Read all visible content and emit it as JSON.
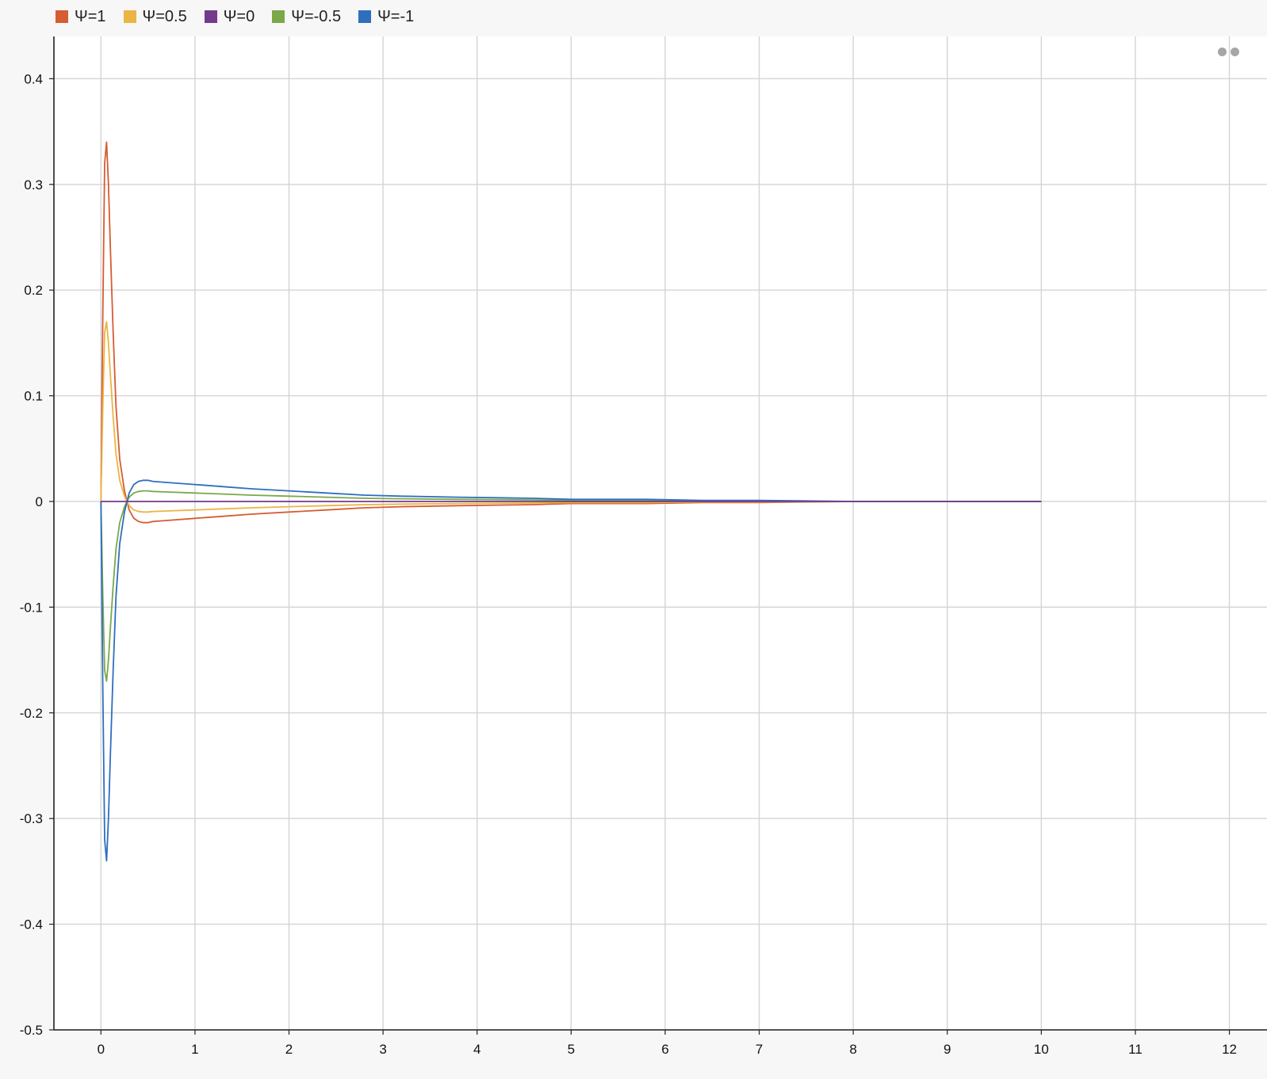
{
  "chart_data": {
    "type": "line",
    "title": "",
    "xlabel": "",
    "ylabel": "",
    "xlim": [
      -0.5,
      12.4
    ],
    "ylim": [
      -0.5,
      0.44
    ],
    "x_ticks": [
      0,
      1,
      2,
      3,
      4,
      5,
      6,
      7,
      8,
      9,
      10,
      11,
      12
    ],
    "y_ticks": [
      0.4,
      0.3,
      0.2,
      0.1,
      0,
      -0.1,
      -0.2,
      -0.3,
      -0.4,
      -0.5
    ],
    "x_tick_labels": [
      "0",
      "1",
      "2",
      "3",
      "4",
      "5",
      "6",
      "7",
      "8",
      "9",
      "10",
      "11",
      "12"
    ],
    "y_tick_labels": [
      "0.4",
      "0.3",
      "0.2",
      "0.1",
      "0",
      "-0.1",
      "-0.2",
      "-0.3",
      "-0.4",
      "-0.5"
    ],
    "grid": true,
    "legend_position": "top-left",
    "x": [
      0,
      0.02,
      0.04,
      0.06,
      0.08,
      0.1,
      0.13,
      0.16,
      0.2,
      0.25,
      0.3,
      0.35,
      0.4,
      0.45,
      0.5,
      0.55,
      0.7,
      1.0,
      1.3,
      1.6,
      2.0,
      2.4,
      2.8,
      3.2,
      3.8,
      4.6,
      5.0,
      5.8,
      6.4,
      7.0,
      8.0,
      9.0,
      10.0
    ],
    "series": [
      {
        "name": "Ψ=1",
        "color": "#d45d33",
        "values": [
          0,
          0.18,
          0.32,
          0.34,
          0.3,
          0.24,
          0.16,
          0.09,
          0.04,
          0.01,
          -0.008,
          -0.016,
          -0.019,
          -0.02,
          -0.02,
          -0.019,
          -0.018,
          -0.016,
          -0.014,
          -0.012,
          -0.01,
          -0.008,
          -0.006,
          -0.005,
          -0.004,
          -0.003,
          -0.002,
          -0.002,
          -0.001,
          -0.001,
          0,
          0,
          0
        ]
      },
      {
        "name": "Ψ=0.5",
        "color": "#ecb445",
        "values": [
          0,
          0.09,
          0.16,
          0.17,
          0.15,
          0.12,
          0.08,
          0.045,
          0.02,
          0.005,
          -0.004,
          -0.008,
          -0.0095,
          -0.01,
          -0.01,
          -0.0095,
          -0.009,
          -0.008,
          -0.007,
          -0.006,
          -0.005,
          -0.004,
          -0.003,
          -0.0025,
          -0.002,
          -0.0015,
          -0.001,
          -0.001,
          -0.0005,
          -0.0005,
          0,
          0,
          0
        ]
      },
      {
        "name": "Ψ=0",
        "color": "#743a8c",
        "values": [
          0,
          0,
          0,
          0,
          0,
          0,
          0,
          0,
          0,
          0,
          0,
          0,
          0,
          0,
          0,
          0,
          0,
          0,
          0,
          0,
          0,
          0,
          0,
          0,
          0,
          0,
          0,
          0,
          0,
          0,
          0,
          0,
          0
        ]
      },
      {
        "name": "Ψ=-0.5",
        "color": "#7aa84a",
        "values": [
          0,
          -0.09,
          -0.16,
          -0.17,
          -0.15,
          -0.12,
          -0.08,
          -0.045,
          -0.02,
          -0.005,
          0.004,
          0.008,
          0.0095,
          0.01,
          0.01,
          0.0095,
          0.009,
          0.008,
          0.007,
          0.006,
          0.005,
          0.004,
          0.003,
          0.0025,
          0.002,
          0.0015,
          0.001,
          0.001,
          0.0005,
          0.0005,
          0,
          0,
          0
        ]
      },
      {
        "name": "Ψ=-1",
        "color": "#2e6fbd",
        "values": [
          0,
          -0.18,
          -0.32,
          -0.34,
          -0.3,
          -0.24,
          -0.16,
          -0.09,
          -0.04,
          -0.01,
          0.008,
          0.016,
          0.019,
          0.02,
          0.02,
          0.019,
          0.018,
          0.016,
          0.014,
          0.012,
          0.01,
          0.008,
          0.006,
          0.005,
          0.004,
          0.003,
          0.002,
          0.002,
          0.001,
          0.001,
          0,
          0,
          0
        ]
      }
    ]
  }
}
